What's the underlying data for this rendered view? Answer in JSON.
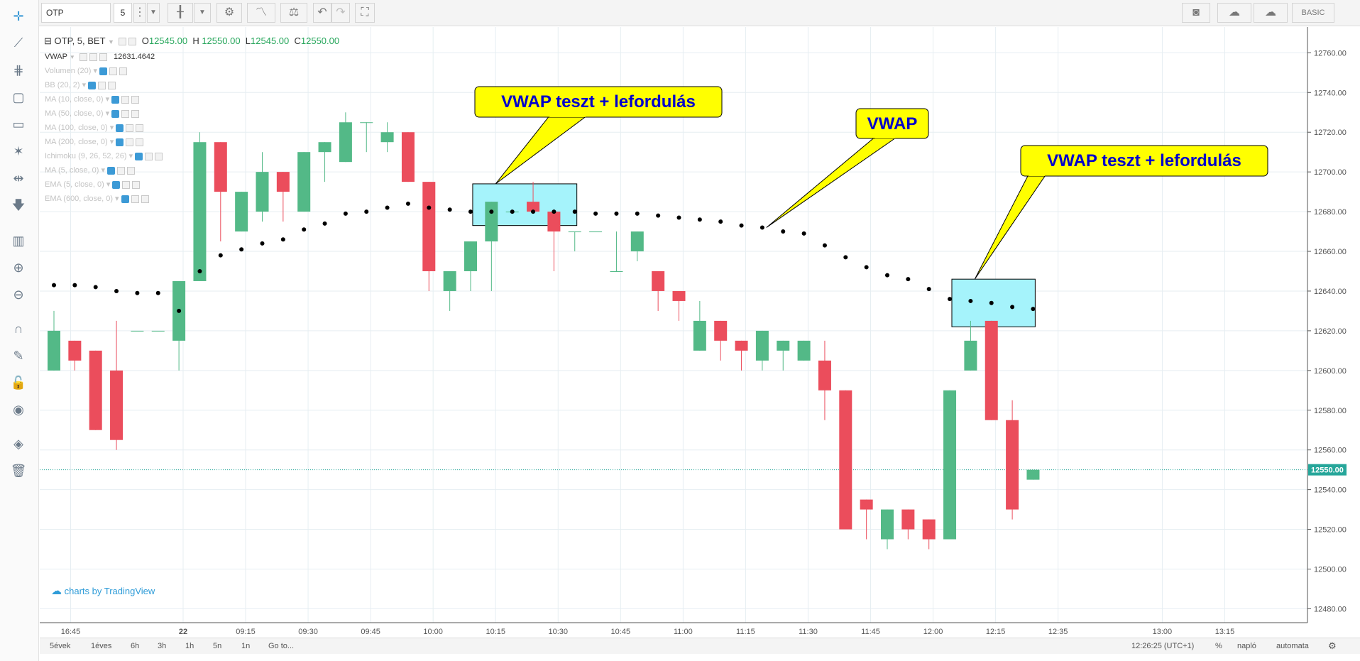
{
  "toolbar": {
    "symbol": "OTP",
    "interval": "5",
    "tier_label": "BASIC",
    "icons": [
      "candles-icon",
      "settings-icon",
      "indicators-icon",
      "compare-icon",
      "undo-icon",
      "redo-icon",
      "fullscreen-icon",
      "camera-icon",
      "cloud-load-icon",
      "cloud-save-icon"
    ]
  },
  "left_toolbar_icons": [
    "crosshair-icon",
    "trend-line-icon",
    "fib-icon",
    "rectangle-icon",
    "callout-icon",
    "pattern-icon",
    "measure-icon",
    "arrow-down-icon",
    "long-short-icon",
    "zoom-in-icon",
    "zoom-out-icon",
    "magnet-icon",
    "lock-drawing-icon",
    "lock-icon",
    "eye-icon",
    "layers-icon",
    "trash-icon"
  ],
  "legend": {
    "title": "OTP, 5, BET",
    "o_label": "O",
    "o_val": "12545.00",
    "h_label": "H",
    "h_val": "12550.00",
    "l_label": "L",
    "l_val": "12545.00",
    "c_label": "C",
    "c_val": "12550.00",
    "vwap_label": "VWAP",
    "vwap_value": "12631.4642",
    "indicators": [
      "Volumen (20)",
      "BB (20, 2)",
      "MA (10, close, 0)",
      "MA (50, close, 0)",
      "MA (100, close, 0)",
      "MA (200, close, 0)",
      "Ichimoku (9, 26, 52, 26)",
      "MA (5, close, 0)",
      "EMA (5, close, 0)",
      "EMA (600, close, 0)"
    ]
  },
  "chart_data": {
    "type": "candlestick",
    "y_ticks": [
      "12480.00",
      "12500.00",
      "12520.00",
      "12540.00",
      "12560.00",
      "12580.00",
      "12600.00",
      "12620.00",
      "12640.00",
      "12660.00",
      "12680.00",
      "12700.00",
      "12720.00",
      "12740.00",
      "12760.00"
    ],
    "ylim": [
      12473,
      12773
    ],
    "x_ticks": [
      {
        "label": "16:45",
        "bar": 0.8
      },
      {
        "label": "22",
        "bar": 6.2
      },
      {
        "label": "09:15",
        "bar": 9.2
      },
      {
        "label": "09:30",
        "bar": 12.2
      },
      {
        "label": "09:45",
        "bar": 15.2
      },
      {
        "label": "10:00",
        "bar": 18.2
      },
      {
        "label": "10:15",
        "bar": 21.2
      },
      {
        "label": "10:30",
        "bar": 24.2
      },
      {
        "label": "10:45",
        "bar": 27.2
      },
      {
        "label": "11:00",
        "bar": 30.2
      },
      {
        "label": "11:15",
        "bar": 33.2
      },
      {
        "label": "11:30",
        "bar": 36.2
      },
      {
        "label": "11:45",
        "bar": 39.2
      },
      {
        "label": "12:00",
        "bar": 42.2
      },
      {
        "label": "12:15",
        "bar": 45.2
      },
      {
        "label": "12:35",
        "bar": 48.2
      },
      {
        "label": "13:00",
        "bar": 53.2
      },
      {
        "label": "13:15",
        "bar": 56.2
      }
    ],
    "candles": [
      {
        "o": 12600,
        "h": 12630,
        "l": 12600,
        "c": 12620
      },
      {
        "o": 12615,
        "h": 12615,
        "l": 12600,
        "c": 12605
      },
      {
        "o": 12610,
        "h": 12610,
        "l": 12570,
        "c": 12570
      },
      {
        "o": 12600,
        "h": 12625,
        "l": 12560,
        "c": 12565
      },
      {
        "o": 12620,
        "h": 12620,
        "l": 12620,
        "c": 12620
      },
      {
        "o": 12620,
        "h": 12620,
        "l": 12620,
        "c": 12620
      },
      {
        "o": 12615,
        "h": 12645,
        "l": 12600,
        "c": 12645
      },
      {
        "o": 12645,
        "h": 12720,
        "l": 12645,
        "c": 12715
      },
      {
        "o": 12715,
        "h": 12715,
        "l": 12665,
        "c": 12690
      },
      {
        "o": 12670,
        "h": 12690,
        "l": 12670,
        "c": 12690
      },
      {
        "o": 12680,
        "h": 12710,
        "l": 12675,
        "c": 12700
      },
      {
        "o": 12700,
        "h": 12700,
        "l": 12675,
        "c": 12690
      },
      {
        "o": 12680,
        "h": 12710,
        "l": 12680,
        "c": 12710
      },
      {
        "o": 12710,
        "h": 12715,
        "l": 12695,
        "c": 12715
      },
      {
        "o": 12705,
        "h": 12730,
        "l": 12705,
        "c": 12725
      },
      {
        "o": 12725,
        "h": 12725,
        "l": 12710,
        "c": 12725
      },
      {
        "o": 12715,
        "h": 12725,
        "l": 12710,
        "c": 12720
      },
      {
        "o": 12720,
        "h": 12720,
        "l": 12695,
        "c": 12695
      },
      {
        "o": 12695,
        "h": 12695,
        "l": 12640,
        "c": 12650
      },
      {
        "o": 12640,
        "h": 12650,
        "l": 12630,
        "c": 12650
      },
      {
        "o": 12650,
        "h": 12665,
        "l": 12640,
        "c": 12665
      },
      {
        "o": 12665,
        "h": 12685,
        "l": 12640,
        "c": 12685
      },
      {
        "o": 12680,
        "h": 12680,
        "l": 12680,
        "c": 12680
      },
      {
        "o": 12685,
        "h": 12695,
        "l": 12680,
        "c": 12680
      },
      {
        "o": 12680,
        "h": 12680,
        "l": 12650,
        "c": 12670
      },
      {
        "o": 12670,
        "h": 12670,
        "l": 12660,
        "c": 12670
      },
      {
        "o": 12670,
        "h": 12670,
        "l": 12670,
        "c": 12670
      },
      {
        "o": 12650,
        "h": 12670,
        "l": 12650,
        "c": 12650
      },
      {
        "o": 12660,
        "h": 12670,
        "l": 12655,
        "c": 12670
      },
      {
        "o": 12650,
        "h": 12650,
        "l": 12630,
        "c": 12640
      },
      {
        "o": 12640,
        "h": 12640,
        "l": 12625,
        "c": 12635
      },
      {
        "o": 12610,
        "h": 12635,
        "l": 12610,
        "c": 12625
      },
      {
        "o": 12625,
        "h": 12625,
        "l": 12605,
        "c": 12615
      },
      {
        "o": 12615,
        "h": 12615,
        "l": 12600,
        "c": 12610
      },
      {
        "o": 12605,
        "h": 12620,
        "l": 12600,
        "c": 12620
      },
      {
        "o": 12610,
        "h": 12615,
        "l": 12600,
        "c": 12615
      },
      {
        "o": 12605,
        "h": 12615,
        "l": 12605,
        "c": 12615
      },
      {
        "o": 12605,
        "h": 12615,
        "l": 12575,
        "c": 12590
      },
      {
        "o": 12590,
        "h": 12590,
        "l": 12520,
        "c": 12520
      },
      {
        "o": 12535,
        "h": 12535,
        "l": 12515,
        "c": 12530
      },
      {
        "o": 12515,
        "h": 12530,
        "l": 12510,
        "c": 12530
      },
      {
        "o": 12530,
        "h": 12530,
        "l": 12515,
        "c": 12520
      },
      {
        "o": 12525,
        "h": 12525,
        "l": 12510,
        "c": 12515
      },
      {
        "o": 12515,
        "h": 12590,
        "l": 12515,
        "c": 12590
      },
      {
        "o": 12600,
        "h": 12625,
        "l": 12600,
        "c": 12615
      },
      {
        "o": 12625,
        "h": 12625,
        "l": 12575,
        "c": 12575
      },
      {
        "o": 12575,
        "h": 12585,
        "l": 12525,
        "c": 12530
      },
      {
        "o": 12545,
        "h": 12550,
        "l": 12545,
        "c": 12550
      }
    ],
    "vwap": [
      {
        "bar": 0,
        "v": 12643
      },
      {
        "bar": 1,
        "v": 12643
      },
      {
        "bar": 2,
        "v": 12642
      },
      {
        "bar": 3,
        "v": 12640
      },
      {
        "bar": 4,
        "v": 12639
      },
      {
        "bar": 5,
        "v": 12639
      },
      {
        "bar": 6,
        "v": 12630
      },
      {
        "bar": 7,
        "v": 12650
      },
      {
        "bar": 8,
        "v": 12658
      },
      {
        "bar": 9,
        "v": 12661
      },
      {
        "bar": 10,
        "v": 12664
      },
      {
        "bar": 11,
        "v": 12666
      },
      {
        "bar": 12,
        "v": 12671
      },
      {
        "bar": 13,
        "v": 12674
      },
      {
        "bar": 14,
        "v": 12679
      },
      {
        "bar": 15,
        "v": 12680
      },
      {
        "bar": 16,
        "v": 12682
      },
      {
        "bar": 17,
        "v": 12684
      },
      {
        "bar": 18,
        "v": 12682
      },
      {
        "bar": 19,
        "v": 12681
      },
      {
        "bar": 20,
        "v": 12680
      },
      {
        "bar": 21,
        "v": 12680
      },
      {
        "bar": 22,
        "v": 12680
      },
      {
        "bar": 23,
        "v": 12680
      },
      {
        "bar": 24,
        "v": 12680
      },
      {
        "bar": 25,
        "v": 12680
      },
      {
        "bar": 26,
        "v": 12679
      },
      {
        "bar": 27,
        "v": 12679
      },
      {
        "bar": 28,
        "v": 12679
      },
      {
        "bar": 29,
        "v": 12678
      },
      {
        "bar": 30,
        "v": 12677
      },
      {
        "bar": 31,
        "v": 12676
      },
      {
        "bar": 32,
        "v": 12675
      },
      {
        "bar": 33,
        "v": 12673
      },
      {
        "bar": 34,
        "v": 12672
      },
      {
        "bar": 35,
        "v": 12670
      },
      {
        "bar": 36,
        "v": 12669
      },
      {
        "bar": 37,
        "v": 12663
      },
      {
        "bar": 38,
        "v": 12657
      },
      {
        "bar": 39,
        "v": 12652
      },
      {
        "bar": 40,
        "v": 12648
      },
      {
        "bar": 41,
        "v": 12646
      },
      {
        "bar": 42,
        "v": 12641
      },
      {
        "bar": 43,
        "v": 12636
      },
      {
        "bar": 44,
        "v": 12635
      },
      {
        "bar": 45,
        "v": 12634
      },
      {
        "bar": 46,
        "v": 12632
      },
      {
        "bar": 47,
        "v": 12631
      }
    ],
    "last_price": 12550,
    "last_price_label": "12550.00",
    "highlights": [
      {
        "bar_from": 20.1,
        "bar_to": 25.1,
        "y_from": 12673,
        "y_to": 12694
      },
      {
        "bar_from": 43.1,
        "bar_to": 47.1,
        "y_from": 12622,
        "y_to": 12646
      }
    ],
    "annotations": [
      {
        "text": "VWAP teszt + lefordulás",
        "anchor_bar": 21.2,
        "anchor_v": 12694
      },
      {
        "text": "VWAP",
        "anchor_bar": 34.2,
        "anchor_v": 12672
      },
      {
        "text": "VWAP teszt + lefordulás",
        "anchor_bar": 44.2,
        "anchor_v": 12646
      }
    ],
    "colors": {
      "up": "#53b987",
      "down": "#eb4d5c",
      "vwap": "#000000",
      "highlight": "#a5f3fb",
      "callout": "#ffff00",
      "callout_text": "#0000cc",
      "grid": "#e6eef2",
      "last_price_line": "#26a69a"
    }
  },
  "brand": "charts by TradingView",
  "bottom_bar": {
    "ranges": [
      "5évek",
      "1éves",
      "6h",
      "3h",
      "1h",
      "5n",
      "1n",
      "Go to..."
    ],
    "time": "12:26:25 (UTC+1)",
    "percent": "%",
    "log": "napló",
    "auto": "automata"
  }
}
